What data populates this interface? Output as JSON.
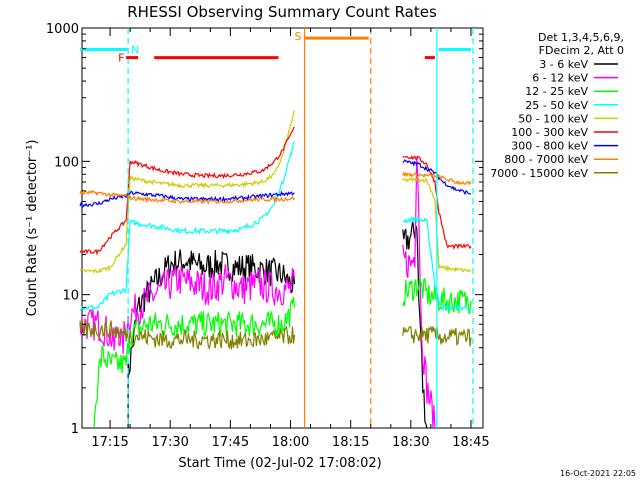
{
  "chart_data": {
    "type": "line",
    "title": "RHESSI Observing Summary Count Rates",
    "xlabel": "Start Time (02-Jul-02 17:08:02)",
    "ylabel": "Count Rate (s⁻¹ detector⁻¹)",
    "yscale": "log",
    "ylim": [
      1,
      1000
    ],
    "xlim_minutes_after_start": [
      0,
      100
    ],
    "x_ticks": [
      {
        "label": "17:15",
        "min": 7
      },
      {
        "label": "17:30",
        "min": 22
      },
      {
        "label": "17:45",
        "min": 37
      },
      {
        "label": "18:00",
        "min": 52
      },
      {
        "label": "18:15",
        "min": 67
      },
      {
        "label": "18:30",
        "min": 82
      },
      {
        "label": "18:45",
        "min": 97
      }
    ],
    "y_ticks": [
      {
        "label": "1",
        "value": 1
      },
      {
        "label": "10",
        "value": 10
      },
      {
        "label": "100",
        "value": 100
      },
      {
        "label": "1000",
        "value": 1000
      }
    ],
    "legend_header": [
      "Det 1,3,4,5,6,9,",
      "FDecim 2, Att 0"
    ],
    "legend_position": "right",
    "series": [
      {
        "name": "3 - 6 keV",
        "color": "#000000",
        "segments": [
          [
            [
              11.5,
              1.0
            ],
            [
              11.5,
              2.5
            ],
            [
              14,
              8
            ],
            [
              18,
              12
            ],
            [
              22,
              17
            ],
            [
              26,
              18
            ],
            [
              30,
              16
            ],
            [
              34,
              17
            ],
            [
              38,
              16
            ],
            [
              42,
              16
            ],
            [
              46,
              15
            ],
            [
              50,
              14
            ],
            [
              52,
              12
            ],
            [
              53,
              12
            ]
          ],
          [
            [
              80,
              24
            ],
            [
              82,
              27
            ],
            [
              83,
              31
            ],
            [
              83.5,
              37
            ],
            [
              84,
              9
            ],
            [
              84.5,
              5
            ],
            [
              85,
              2
            ],
            [
              86,
              1
            ]
          ]
        ]
      },
      {
        "name": "6 - 12 keV",
        "color": "#ff00ff",
        "segments": [
          [
            [
              -0.5,
              6
            ],
            [
              4,
              6
            ],
            [
              7,
              5
            ],
            [
              8,
              4
            ],
            [
              9,
              6
            ],
            [
              10,
              4
            ],
            [
              11,
              6
            ],
            [
              12,
              7
            ],
            [
              16,
              9
            ],
            [
              20,
              11
            ],
            [
              24,
              13
            ],
            [
              28,
              12
            ],
            [
              32,
              11
            ],
            [
              36,
              13
            ],
            [
              40,
              11
            ],
            [
              44,
              12
            ],
            [
              48,
              11
            ],
            [
              52,
              11
            ],
            [
              53,
              13
            ]
          ],
          [
            [
              80,
              18
            ],
            [
              82,
              17
            ],
            [
              83,
              20
            ],
            [
              83.5,
              140
            ],
            [
              84,
              45
            ],
            [
              84.5,
              8
            ],
            [
              85,
              4
            ],
            [
              86,
              2
            ],
            [
              87,
              1.5
            ],
            [
              88,
              1
            ]
          ]
        ]
      },
      {
        "name": "12 - 25 keV",
        "color": "#00ff00",
        "segments": [
          [
            [
              3,
              1
            ],
            [
              4,
              2.5
            ],
            [
              5,
              3.5
            ],
            [
              7,
              3
            ],
            [
              9,
              3
            ],
            [
              11,
              3
            ],
            [
              12,
              5
            ],
            [
              16,
              6
            ],
            [
              20,
              6
            ],
            [
              25,
              6
            ],
            [
              30,
              6
            ],
            [
              35,
              6
            ],
            [
              40,
              6
            ],
            [
              45,
              6
            ],
            [
              50,
              6
            ],
            [
              53,
              8
            ]
          ],
          [
            [
              80,
              10
            ],
            [
              82,
              11
            ],
            [
              84,
              12
            ],
            [
              86,
              10
            ],
            [
              90,
              9
            ],
            [
              97,
              9
            ]
          ]
        ]
      },
      {
        "name": "25 - 50 keV",
        "color": "#00ffff",
        "segments": [
          [
            [
              -0.5,
              8
            ],
            [
              4,
              8
            ],
            [
              7,
              10
            ],
            [
              11,
              11
            ],
            [
              12,
              35
            ],
            [
              20,
              32
            ],
            [
              25,
              30
            ],
            [
              30,
              30
            ],
            [
              35,
              30
            ],
            [
              40,
              31
            ],
            [
              45,
              37
            ],
            [
              48,
              48
            ],
            [
              50,
              70
            ],
            [
              53,
              140
            ]
          ],
          [
            [
              80,
              36
            ],
            [
              84,
              37
            ],
            [
              86,
              35
            ],
            [
              88,
              12
            ],
            [
              89,
              9
            ],
            [
              90,
              8
            ],
            [
              97,
              8
            ]
          ]
        ]
      },
      {
        "name": "50 - 100 keV",
        "color": "#cccc00",
        "segments": [
          [
            [
              -0.5,
              15
            ],
            [
              4,
              15
            ],
            [
              7,
              16
            ],
            [
              11,
              24
            ],
            [
              12,
              75
            ],
            [
              15,
              72
            ],
            [
              20,
              68
            ],
            [
              25,
              66
            ],
            [
              30,
              66
            ],
            [
              35,
              66
            ],
            [
              40,
              67
            ],
            [
              45,
              70
            ],
            [
              48,
              80
            ],
            [
              50,
              110
            ],
            [
              53,
              240
            ]
          ],
          [
            [
              80,
              72
            ],
            [
              84,
              73
            ],
            [
              86,
              72
            ],
            [
              88,
              52
            ],
            [
              89,
              16
            ],
            [
              97,
              15
            ]
          ]
        ]
      },
      {
        "name": "100 - 300 keV",
        "color": "#ff0000",
        "segments": [
          [
            [
              -0.5,
              21
            ],
            [
              4,
              21
            ],
            [
              7,
              27
            ],
            [
              11,
              36
            ],
            [
              12,
              100
            ],
            [
              16,
              92
            ],
            [
              20,
              85
            ],
            [
              25,
              80
            ],
            [
              30,
              78
            ],
            [
              35,
              78
            ],
            [
              40,
              80
            ],
            [
              45,
              85
            ],
            [
              48,
              100
            ],
            [
              50,
              120
            ],
            [
              53,
              180
            ]
          ],
          [
            [
              80,
              110
            ],
            [
              84,
              105
            ],
            [
              86,
              95
            ],
            [
              88,
              70
            ],
            [
              89,
              42
            ],
            [
              91,
              23
            ],
            [
              97,
              23
            ]
          ]
        ]
      },
      {
        "name": "300 - 800 keV",
        "color": "#0000ff",
        "segments": [
          [
            [
              -0.5,
              47
            ],
            [
              4,
              48
            ],
            [
              7,
              52
            ],
            [
              11,
              55
            ],
            [
              12,
              58
            ],
            [
              20,
              55
            ],
            [
              25,
              52
            ],
            [
              30,
              52
            ],
            [
              35,
              52
            ],
            [
              40,
              53
            ],
            [
              45,
              55
            ],
            [
              50,
              57
            ],
            [
              53,
              58
            ]
          ],
          [
            [
              80,
              100
            ],
            [
              84,
              95
            ],
            [
              86,
              88
            ],
            [
              88,
              82
            ],
            [
              90,
              70
            ],
            [
              93,
              62
            ],
            [
              97,
              57
            ]
          ]
        ]
      },
      {
        "name": "800 - 7000 keV",
        "color": "#ff7f00",
        "segments": [
          [
            [
              -0.5,
              58
            ],
            [
              4,
              58
            ],
            [
              7,
              56
            ],
            [
              11,
              55
            ],
            [
              12,
              53
            ],
            [
              20,
              51
            ],
            [
              25,
              50
            ],
            [
              30,
              50
            ],
            [
              35,
              50
            ],
            [
              40,
              51
            ],
            [
              45,
              52
            ],
            [
              50,
              52
            ],
            [
              53,
              53
            ]
          ],
          [
            [
              80,
              80
            ],
            [
              84,
              79
            ],
            [
              86,
              78
            ],
            [
              88,
              78
            ],
            [
              90,
              75
            ],
            [
              93,
              70
            ],
            [
              97,
              68
            ]
          ]
        ]
      },
      {
        "name": "7000 - 15000 keV",
        "color": "#808000",
        "segments": [
          [
            [
              -0.5,
              5.5
            ],
            [
              4,
              5.5
            ],
            [
              7,
              5.5
            ],
            [
              11,
              5.0
            ],
            [
              12,
              5.0
            ],
            [
              20,
              4.6
            ],
            [
              25,
              4.6
            ],
            [
              30,
              4.6
            ],
            [
              35,
              4.6
            ],
            [
              40,
              4.5
            ],
            [
              45,
              4.6
            ],
            [
              50,
              4.8
            ],
            [
              53,
              5.0
            ]
          ],
          [
            [
              80,
              5
            ],
            [
              84,
              5
            ],
            [
              86,
              5
            ],
            [
              88,
              5
            ],
            [
              90,
              4.8
            ],
            [
              93,
              4.8
            ],
            [
              97,
              4.8
            ]
          ]
        ]
      }
    ],
    "annotations": [
      {
        "label": "N",
        "color": "#00ffff",
        "x_min": 11.5,
        "x_end_min": null,
        "y": 690,
        "band_min": [
          -0.5,
          11.5
        ],
        "band2_min": [
          89,
          97
        ],
        "solid_line_min": [
          88.5
        ],
        "dashed_line_min": [
          11.5,
          97.5
        ]
      },
      {
        "label": "F",
        "color": "#ff0000",
        "x_min": 10,
        "y": 600,
        "bars_min": [
          [
            11,
            14
          ],
          [
            18,
            49
          ],
          [
            85.5,
            88
          ]
        ]
      },
      {
        "label": "S",
        "color": "#ff7f00",
        "x_min": 55,
        "y": 840,
        "bars_min": [
          [
            55.5,
            71.5
          ]
        ],
        "solid_line_min": [
          55.5
        ],
        "dashed_line_min": [
          72
        ]
      }
    ],
    "footer_date": "16-Oct-2021 22:05"
  }
}
